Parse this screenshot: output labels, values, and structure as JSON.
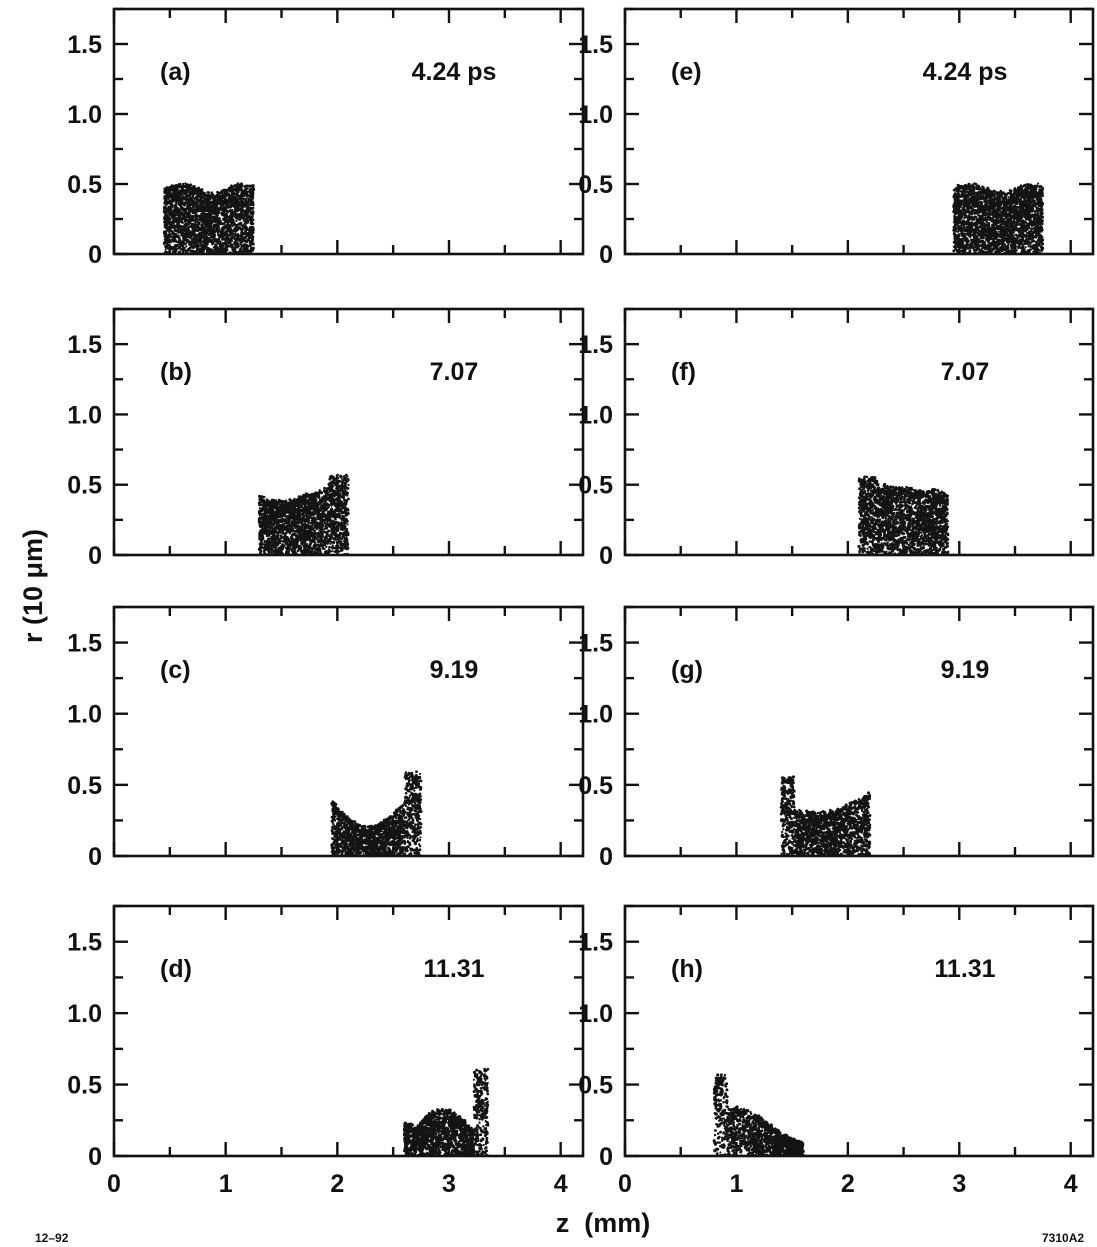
{
  "chart_data": {
    "type": "scatter",
    "xlabel": "z  (mm)",
    "ylabel": "r  (10 μm)",
    "xlim": [
      0,
      4.2
    ],
    "ylim": [
      0,
      1.75
    ],
    "x_ticks": [
      "0",
      "1",
      "2",
      "3",
      "4"
    ],
    "y_ticks": [
      "0",
      "0.5",
      "1.0",
      "1.5"
    ],
    "grid": false,
    "panels": [
      {
        "label": "(a)",
        "time": "4.24 ps",
        "column": 0,
        "row": 0,
        "z_range": [
          0.45,
          1.25
        ],
        "max_r": 0.5,
        "shape": "flat",
        "density": 2600
      },
      {
        "label": "(b)",
        "time": "7.07",
        "column": 0,
        "row": 1,
        "z_range": [
          1.3,
          2.1
        ],
        "max_r": 0.56,
        "shape": "spike_back",
        "density": 2300
      },
      {
        "label": "(c)",
        "time": "9.19",
        "column": 0,
        "row": 2,
        "z_range": [
          1.95,
          2.75
        ],
        "max_r": 0.58,
        "shape": "dip_spike_back",
        "density": 1800
      },
      {
        "label": "(d)",
        "time": "11.31",
        "column": 0,
        "row": 3,
        "z_range": [
          2.6,
          3.35
        ],
        "max_r": 0.6,
        "shape": "hump_spike_back",
        "density": 1700
      },
      {
        "label": "(e)",
        "time": "4.24 ps",
        "column": 1,
        "row": 0,
        "z_range": [
          2.95,
          3.75
        ],
        "max_r": 0.5,
        "shape": "flat",
        "density": 2600
      },
      {
        "label": "(f)",
        "time": "7.07",
        "column": 1,
        "row": 1,
        "z_range": [
          2.1,
          2.9
        ],
        "max_r": 0.55,
        "shape": "spike_front",
        "density": 2300
      },
      {
        "label": "(g)",
        "time": "9.19",
        "column": 1,
        "row": 2,
        "z_range": [
          1.4,
          2.2
        ],
        "max_r": 0.56,
        "shape": "dip_spike_front",
        "density": 1800
      },
      {
        "label": "(h)",
        "time": "11.31",
        "column": 1,
        "row": 3,
        "z_range": [
          0.8,
          1.6
        ],
        "max_r": 0.56,
        "shape": "decay_front",
        "density": 1500
      }
    ]
  },
  "footer": {
    "left_code": "12–92",
    "right_code": "7310A2"
  }
}
